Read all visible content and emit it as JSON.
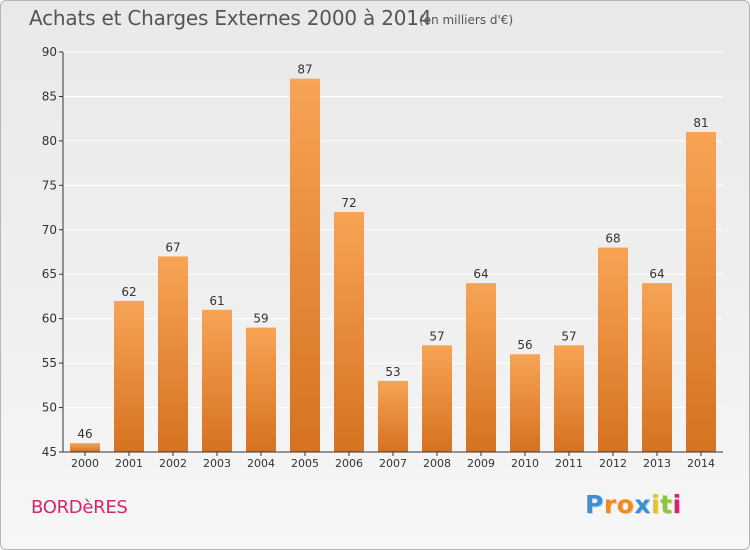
{
  "header": {
    "title": "Achats et Charges Externes 2000 à 2014",
    "subtitle": "(en milliers d'€)"
  },
  "footer": {
    "city": "BORDèRES",
    "logo": {
      "letters": [
        "P",
        "r",
        "o",
        "x",
        "i",
        "t",
        "i"
      ],
      "colors": [
        "#3a8fd6",
        "#f08c1e",
        "#f08c1e",
        "#3a8fd6",
        "#e8c41a",
        "#8cc63f",
        "#d2266f"
      ]
    }
  },
  "colors": {
    "bar_light": "#f7a455",
    "bar_dark": "#d67220",
    "axis": "#333333",
    "grid": "#ffffff",
    "city": "#d2266f"
  },
  "chart_data": {
    "type": "bar",
    "title": "Achats et Charges Externes 2000 à 2014",
    "subtitle": "(en milliers d'€)",
    "xlabel": "",
    "ylabel": "",
    "categories": [
      "2000",
      "2001",
      "2002",
      "2003",
      "2004",
      "2005",
      "2006",
      "2007",
      "2008",
      "2009",
      "2010",
      "2011",
      "2012",
      "2013",
      "2014"
    ],
    "values": [
      46,
      62,
      67,
      61,
      59,
      87,
      72,
      53,
      57,
      64,
      56,
      57,
      68,
      64,
      81
    ],
    "data_labels": [
      "46",
      "62",
      "67",
      "61",
      "59",
      "87",
      "72",
      "53",
      "57",
      "64",
      "56",
      "57",
      "68",
      "64",
      "81"
    ],
    "ylim": [
      45,
      90
    ],
    "yticks": [
      45,
      50,
      55,
      60,
      65,
      70,
      75,
      80,
      85,
      90
    ],
    "grid": true,
    "legend": "none"
  }
}
